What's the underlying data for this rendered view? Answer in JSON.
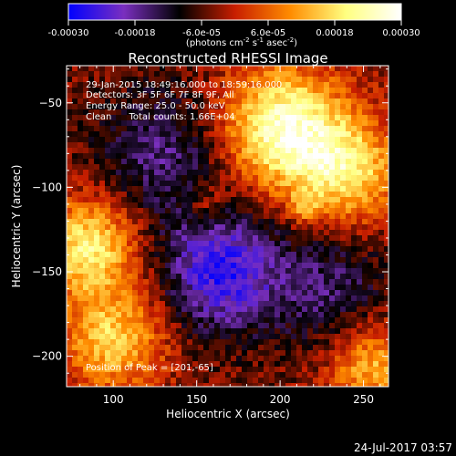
{
  "colorbar": {
    "tick_labels": [
      "-0.00030",
      "-0.00018",
      "-6.0e-05",
      "6.0e-05",
      "0.00018",
      "0.00030"
    ],
    "tick_values": [
      -0.0003,
      -0.00018,
      -6e-05,
      6e-05,
      0.00018,
      0.0003
    ],
    "range": [
      -0.0003,
      0.0003
    ],
    "units_main": "(photons cm",
    "units_exp1": "-2",
    "units_mid": " s",
    "units_exp2": "-1",
    "units_end": " asec",
    "units_exp3": "-2",
    "units_close": ")",
    "colors": [
      "#0000ff",
      "#7a2fbf",
      "#000000",
      "#c81e00",
      "#ff8c00",
      "#ffff80",
      "#ffffff"
    ]
  },
  "chart_data": {
    "type": "heatmap",
    "title": "Reconstructed RHESSI Image",
    "xlabel": "Heliocentric X (arcsec)",
    "ylabel": "Heliocentric Y (arcsec)",
    "xlim": [
      72,
      265
    ],
    "ylim": [
      -218,
      -28
    ],
    "x_ticks": [
      100,
      150,
      200,
      250
    ],
    "y_ticks": [
      -50,
      -100,
      -150,
      -200
    ],
    "x_tick_labels": [
      "100",
      "150",
      "200",
      "250"
    ],
    "y_tick_labels": [
      "−50",
      "−100",
      "−150",
      "−200"
    ],
    "annotations": [
      "29-Jan-2015 18:49:16.000 to 18:59:16.000",
      "Detectors: 3F 5F 6F 7F 8F 9F, All",
      "Energy Range: 25.0 - 50.0 keV",
      "Clean      Total counts: 1.66E+04"
    ],
    "peak_label": "Position of Peak = [201,-65]",
    "peak": [
      201,
      -65
    ],
    "bright_regions": [
      {
        "x": 201,
        "y": -65,
        "sigma": 25,
        "amp": 0.0003
      },
      {
        "x": 240,
        "y": -90,
        "sigma": 22,
        "amp": 0.00022
      },
      {
        "x": 85,
        "y": -135,
        "sigma": 20,
        "amp": 0.00024
      },
      {
        "x": 100,
        "y": -190,
        "sigma": 22,
        "amp": 0.0002
      },
      {
        "x": 255,
        "y": -205,
        "sigma": 18,
        "amp": 0.00018
      },
      {
        "x": 215,
        "y": -112,
        "sigma": 6,
        "amp": 0.00012
      },
      {
        "x": 155,
        "y": -110,
        "sigma": 9,
        "amp": 9e-05
      }
    ],
    "dim_regions": [
      {
        "x": 165,
        "y": -150,
        "sigma": 25,
        "amp": -0.00022
      },
      {
        "x": 130,
        "y": -80,
        "sigma": 28,
        "amp": -0.00012
      },
      {
        "x": 230,
        "y": -160,
        "sigma": 25,
        "amp": -0.00011
      }
    ]
  },
  "timestamp": "24-Jul-2017 03:57"
}
